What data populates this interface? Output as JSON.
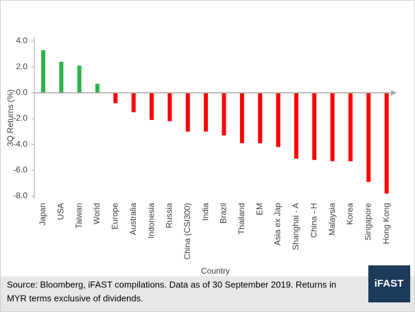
{
  "chart_data": {
    "type": "bar",
    "ylabel": "3Q Returns (%)",
    "xlabel": "Country",
    "categories": [
      "Japan",
      "USA",
      "Taiwan",
      "World",
      "Europe",
      "Australia",
      "Indonesia",
      "Russia",
      "China (CSI300)",
      "India",
      "Brazil",
      "Thailand",
      "EM",
      "Asia ex Jap",
      "Shanghai - A",
      "China - H",
      "Malaysia",
      "Korea",
      "Singapore",
      "Hong Kong"
    ],
    "values": [
      3.3,
      2.4,
      2.1,
      0.7,
      -0.8,
      -1.5,
      -2.1,
      -2.2,
      -3.0,
      -3.0,
      -3.3,
      -3.9,
      -3.9,
      -4.2,
      -5.1,
      -5.2,
      -5.3,
      -5.3,
      -6.9,
      -7.8
    ],
    "positive_color": "#2db34a",
    "negative_color": "#ff0000",
    "ylim": [
      -8,
      4
    ],
    "yticks": [
      {
        "value": 4,
        "label": "4.0"
      },
      {
        "value": 2,
        "label": "2.0"
      },
      {
        "value": 0,
        "label": "0.0"
      },
      {
        "value": -2,
        "label": "-2.0"
      },
      {
        "value": -4,
        "label": "-4.0"
      },
      {
        "value": -6,
        "label": "-6.0"
      },
      {
        "value": -8,
        "label": "-8.0"
      }
    ],
    "source_lines": [
      "Source: Bloomberg, iFAST compilations. Data as of 30 September 2019. Returns in",
      "MYR terms exclusive of dividends."
    ],
    "logo": "iFAST"
  }
}
